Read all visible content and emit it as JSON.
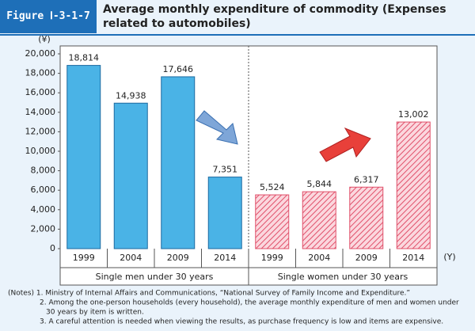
{
  "figure_label": "Figure Ⅰ-3-1-7",
  "chart_data": {
    "type": "bar",
    "title": "Average monthly expenditure of commodity (Expenses related to automobiles)",
    "y_unit": "(¥)",
    "x_unit": "(Y)",
    "categories": [
      "1999",
      "2004",
      "2009",
      "2014",
      "1999",
      "2004",
      "2009",
      "2014"
    ],
    "groups": [
      "Single men under 30 years",
      "Single women under 30 years"
    ],
    "series": [
      {
        "color": "#4ab3e6",
        "values": [
          18814,
          14938,
          17646,
          7351,
          null,
          null,
          null,
          null
        ],
        "value_labels": [
          "18,814",
          "14,938",
          "17,646",
          "7,351",
          null,
          null,
          null,
          null
        ]
      },
      {
        "color": "#e0506a",
        "values": [
          null,
          null,
          null,
          null,
          5524,
          5844,
          6317,
          13002
        ],
        "value_labels": [
          null,
          null,
          null,
          null,
          "5,524",
          "5,844",
          "6,317",
          "13,002"
        ]
      }
    ],
    "ylim": [
      0,
      20000
    ],
    "yticks": [
      0,
      {
        "value": 2000,
        "label": "2,000"
      },
      {
        "value": 4000,
        "label": "4,000"
      },
      {
        "value": 6000,
        "label": "6,000"
      },
      {
        "value": 8000,
        "label": "8,000"
      },
      {
        "value": 10000,
        "label": "10,000"
      },
      {
        "value": 12000,
        "label": "12,000"
      },
      {
        "value": 14000,
        "label": "14,000"
      },
      {
        "value": 16000,
        "label": "16,000"
      },
      {
        "value": 18000,
        "label": "18,000"
      },
      {
        "value": 20000,
        "label": "20,000"
      }
    ]
  },
  "notes": [
    "(Notes) 1. Ministry of Internal Affairs and Communications, “National Survey of Family Income and Expenditure.”",
    "2. Among the one-person households (every household), the average monthly expenditure of men and women under",
    "30 years by item is written.",
    "3. A careful attention is needed when viewing the results, as purchase frequency is low and items are expensive."
  ]
}
